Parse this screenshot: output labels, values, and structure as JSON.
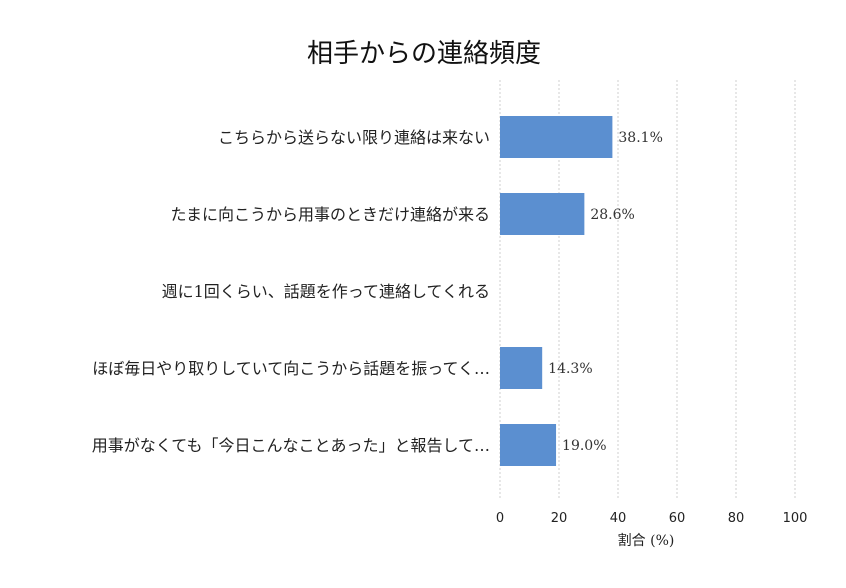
{
  "chart_data": {
    "type": "bar",
    "orientation": "horizontal",
    "title": "相手からの連絡頻度",
    "xlabel": "割合 (%)",
    "ylabel": "",
    "xlim": [
      0,
      100
    ],
    "xticks": [
      0,
      20,
      40,
      60,
      80,
      100
    ],
    "grid": "x-dashed",
    "bar_color": "#5b8fd0",
    "categories": [
      "こちらから送らない限り連絡は来ない",
      "たまに向こうから用事のときだけ連絡が来る",
      "週に1回くらい、話題を作って連絡してくれる",
      "ほぼ毎日やり取りしていて向こうから話題を振ってく…",
      "用事がなくても「今日こんなことあった」と報告して…"
    ],
    "values": [
      38.1,
      28.6,
      0,
      14.3,
      19.0
    ],
    "value_labels": [
      "38.1%",
      "28.6%",
      "",
      "14.3%",
      "19.0%"
    ]
  }
}
